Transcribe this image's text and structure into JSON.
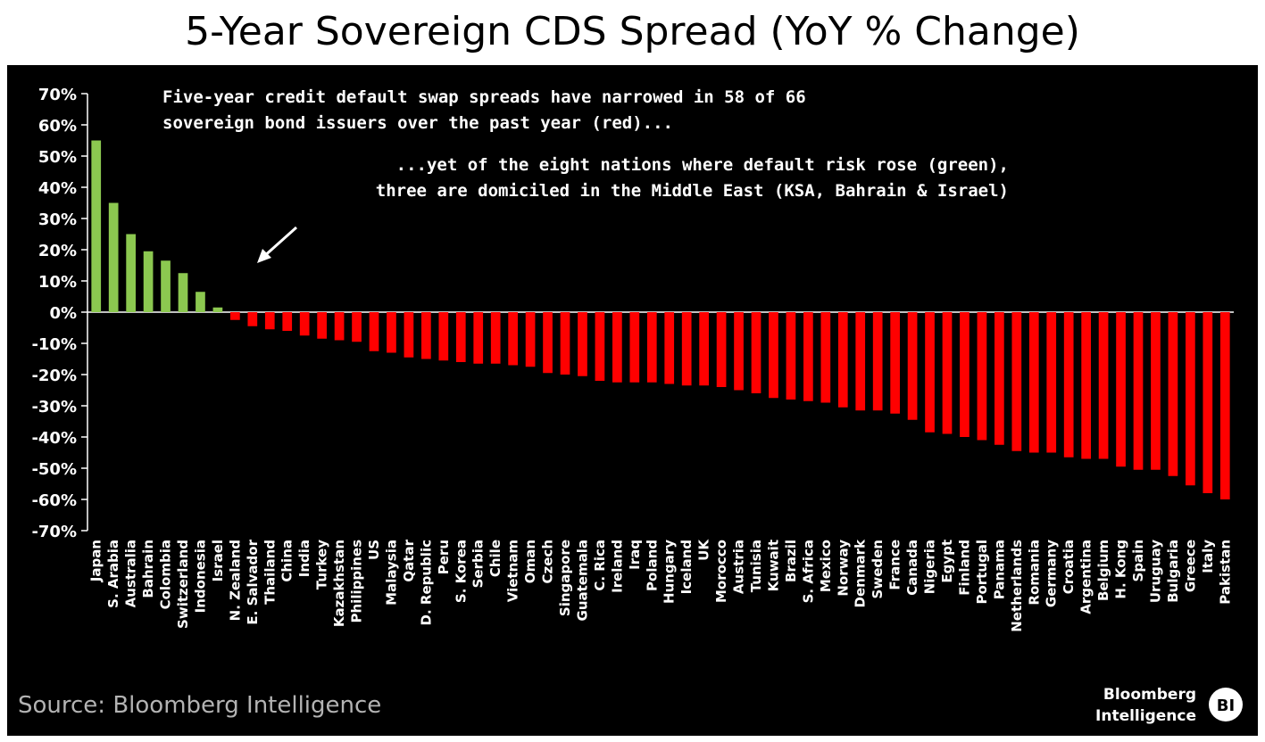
{
  "chart_data": {
    "type": "bar",
    "title": "5-Year Sovereign CDS Spread (YoY % Change)",
    "xlabel": "",
    "ylabel": "",
    "ylim": [
      -70,
      70
    ],
    "yticks": [
      70,
      60,
      50,
      40,
      30,
      20,
      10,
      0,
      -10,
      -20,
      -30,
      -40,
      -50,
      -60,
      -70
    ],
    "ytick_labels": [
      "70%",
      "60%",
      "50%",
      "40%",
      "30%",
      "20%",
      "10%",
      "0%",
      "-10%",
      "-20%",
      "-30%",
      "-40%",
      "-50%",
      "-60%",
      "-70%"
    ],
    "grid": false,
    "legend": "none",
    "categories": [
      "Japan",
      "S. Arabia",
      "Australia",
      "Bahrain",
      "Colombia",
      "Switzerland",
      "Indonesia",
      "Israel",
      "N. Zealand",
      "E. Salvador",
      "Thailand",
      "China",
      "India",
      "Turkey",
      "Kazakhstan",
      "Philippines",
      "US",
      "Malaysia",
      "Qatar",
      "D. Republic",
      "Peru",
      "S. Korea",
      "Serbia",
      "Chile",
      "Vietnam",
      "Oman",
      "Czech",
      "Singapore",
      "Guatemala",
      "C. Rica",
      "Ireland",
      "Iraq",
      "Poland",
      "Hungary",
      "Iceland",
      "UK",
      "Morocco",
      "Austria",
      "Tunisia",
      "Kuwait",
      "Brazil",
      "S. Africa",
      "Mexico",
      "Norway",
      "Denmark",
      "Sweden",
      "France",
      "Canada",
      "Nigeria",
      "Egypt",
      "Finland",
      "Portugal",
      "Panama",
      "Netherlands",
      "Romania",
      "Germany",
      "Croatia",
      "Argentina",
      "Belgium",
      "H. Kong",
      "Spain",
      "Uruguay",
      "Bulgaria",
      "Greece",
      "Italy",
      "Pakistan"
    ],
    "values": [
      55,
      35,
      25,
      19.5,
      16.5,
      12.5,
      6.5,
      1.5,
      -2.5,
      -4.5,
      -5.5,
      -6,
      -7.5,
      -8.5,
      -9,
      -9.5,
      -12.5,
      -13,
      -14.5,
      -15,
      -15.5,
      -16,
      -16.5,
      -16.5,
      -17,
      -17.5,
      -19.5,
      -20,
      -20.5,
      -22,
      -22.5,
      -22.5,
      -22.5,
      -23,
      -23.5,
      -23.5,
      -24,
      -25,
      -26,
      -27.5,
      -28,
      -28.5,
      -29,
      -30.5,
      -31.5,
      -31.5,
      -32.5,
      -34.5,
      -38.5,
      -39,
      -40,
      -41,
      -42.5,
      -44.5,
      -45,
      -45,
      -46.5,
      -47,
      -47,
      -49.5,
      -50.5,
      -50.5,
      -52.5,
      -55.5,
      -58,
      -60
    ],
    "positive_color": "#8cc850",
    "negative_color": "#ff0000"
  },
  "annotations": {
    "note1_line1": "Five-year credit default swap spreads have narrowed in 58 of 66",
    "note1_line2": "sovereign bond issuers over the past year (red)...",
    "note2_line1": "...yet of the eight nations where default risk rose (green),",
    "note2_line2": "three are domiciled in the Middle East (KSA, Bahrain & Israel)"
  },
  "footer": {
    "source": "Source: Bloomberg Intelligence",
    "brand_line1": "Bloomberg",
    "brand_line2": "Intelligence",
    "badge": "BI"
  }
}
